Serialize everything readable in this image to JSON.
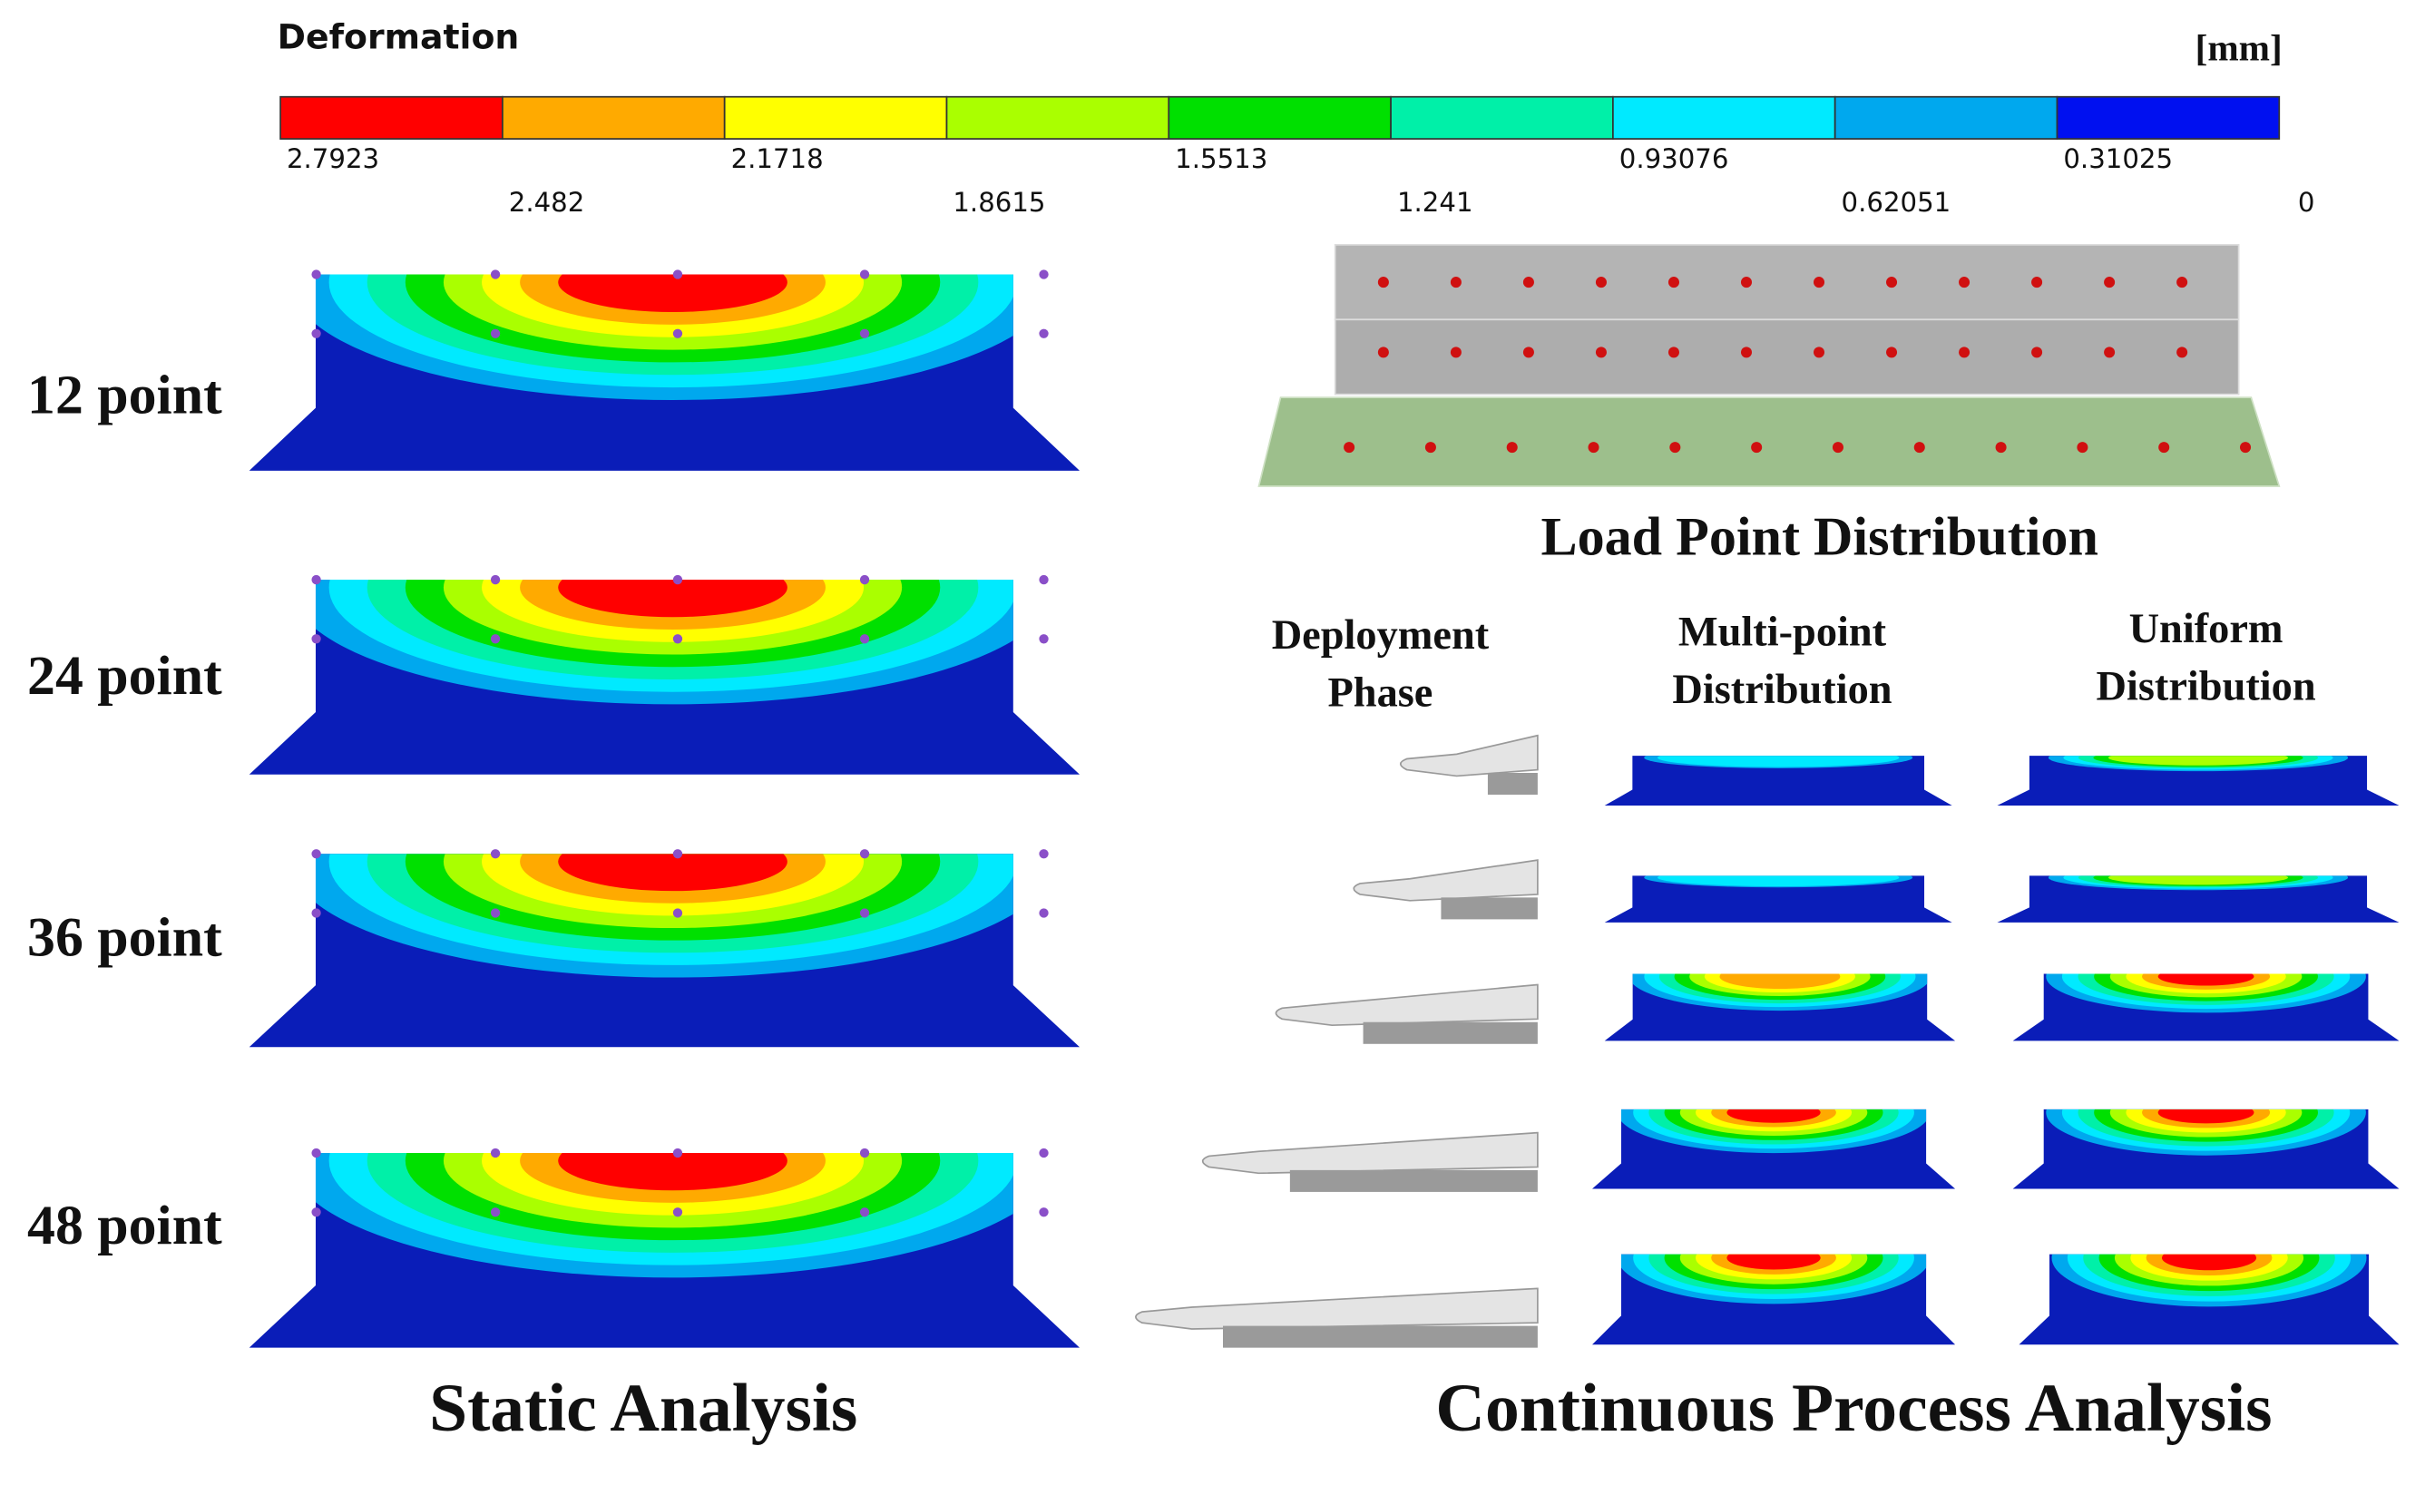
{
  "legend": {
    "title": "Deformation",
    "unit": "[mm]",
    "labels": [
      "2.7923",
      "2.482",
      "2.1718",
      "1.8615",
      "1.5513",
      "1.241",
      "0.93076",
      "0.62051",
      "0.31025",
      "0"
    ],
    "colors": [
      "#ff0000",
      "#ffaa00",
      "#ffff00",
      "#aaff00",
      "#00e000",
      "#00f0a8",
      "#00eaff",
      "#00a8ee",
      "#0010f0"
    ]
  },
  "static": {
    "rows": [
      "12 point",
      "24 point",
      "36 point",
      "48 point"
    ],
    "caption": "Static Analysis"
  },
  "load": {
    "caption": "Load Point Distribution"
  },
  "process": {
    "headers": [
      [
        "Deployment",
        "Phase"
      ],
      [
        "Multi-point",
        "Distribution"
      ],
      [
        "Uniform",
        "Distribution"
      ]
    ],
    "caption": "Continuous Process Analysis"
  }
}
